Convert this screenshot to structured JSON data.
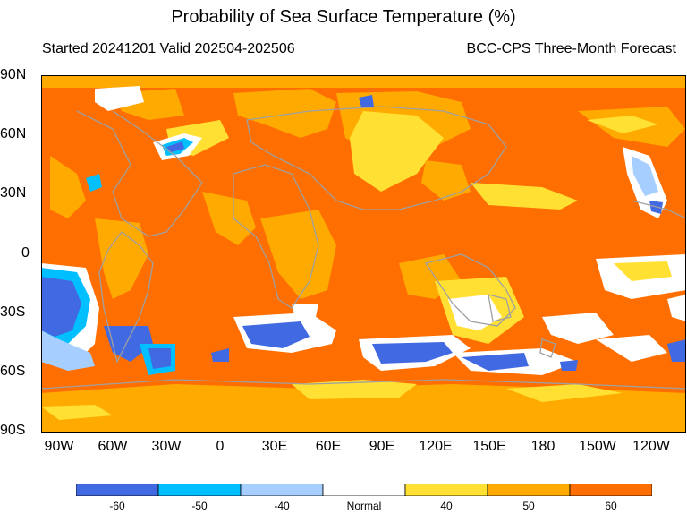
{
  "title": "Probability of Sea Surface Temperature (%)",
  "subtitle_left": "Started 20241201  Valid 202504-202506",
  "subtitle_right": "BCC-CPS Three-Month Forecast",
  "lat_labels": [
    "90N",
    "60N",
    "30N",
    "0",
    "30S",
    "60S",
    "90S"
  ],
  "lon_labels": [
    "90W",
    "60W",
    "30W",
    "0",
    "30E",
    "60E",
    "90E",
    "120E",
    "150E",
    "180",
    "150W",
    "120W"
  ],
  "legend": {
    "categories": [
      "-60",
      "-50",
      "-40",
      "Normal",
      "40",
      "50",
      "60"
    ],
    "colors": [
      "#4169e1",
      "#00bfff",
      "#a6cfff",
      "#ffffff",
      "#ffe033",
      "#ffaa00",
      "#ff6e00"
    ]
  },
  "colors": {
    "ocean_dominant": "#ff6e00",
    "coastline": "#a0a0a0",
    "frame": "#000000"
  }
}
